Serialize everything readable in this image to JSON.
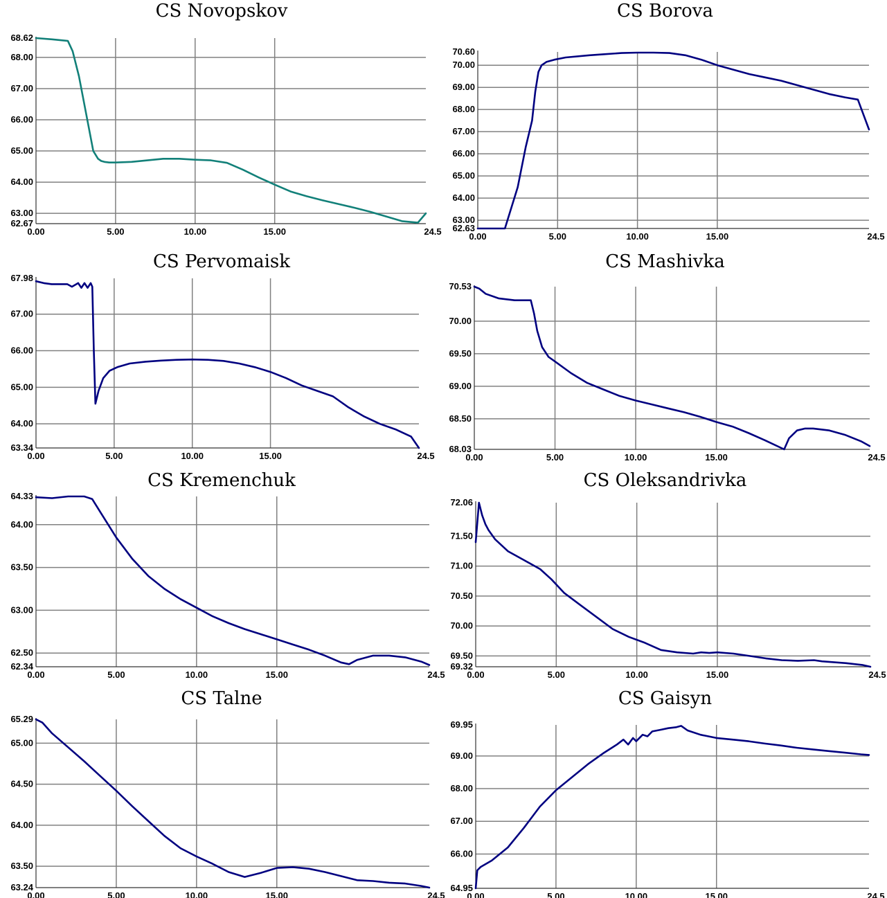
{
  "colors": {
    "line_blue": "#000080",
    "line_teal": "#128079",
    "grid": "#808080",
    "axis": "#333333"
  },
  "chart_data": [
    {
      "type": "line",
      "title": "CS Novopskov",
      "xlim": [
        0,
        24.5
      ],
      "ylim": [
        62.67,
        68.62
      ],
      "xticks": [
        "0.00",
        "5.00",
        "10.00",
        "15.00",
        "24.5"
      ],
      "xtick_values": [
        0,
        5,
        10,
        15,
        24.5
      ],
      "yticks": [
        "62.67",
        "63.00",
        "64.00",
        "65.00",
        "66.00",
        "67.00",
        "68.00",
        "68.62"
      ],
      "ytick_values": [
        62.67,
        63,
        64,
        65,
        66,
        67,
        68,
        68.62
      ],
      "line_color": "#128079",
      "x": [
        0,
        1,
        2,
        2.3,
        2.7,
        3.0,
        3.3,
        3.6,
        3.9,
        4.1,
        4.3,
        4.6,
        5,
        6,
        7,
        8,
        9,
        10,
        11,
        12,
        13,
        14,
        15,
        16,
        17,
        18,
        19,
        20,
        21,
        22,
        23,
        24,
        24.5
      ],
      "y": [
        68.62,
        68.58,
        68.53,
        68.2,
        67.4,
        66.6,
        65.8,
        65.0,
        64.75,
        64.68,
        64.65,
        64.63,
        64.63,
        64.65,
        64.7,
        64.75,
        64.75,
        64.72,
        64.7,
        64.62,
        64.4,
        64.15,
        63.92,
        63.7,
        63.55,
        63.42,
        63.3,
        63.18,
        63.05,
        62.9,
        62.75,
        62.7,
        63.0
      ]
    },
    {
      "type": "line",
      "title": "CS Borova",
      "xlim": [
        0,
        24.5
      ],
      "ylim": [
        62.63,
        70.6
      ],
      "xticks": [
        "0.00",
        "5.00",
        "10.00",
        "15.00",
        "24.5"
      ],
      "xtick_values": [
        0,
        5,
        10,
        15,
        24.5
      ],
      "yticks": [
        "62.63",
        "63.00",
        "64.00",
        "65.00",
        "66.00",
        "67.00",
        "68.00",
        "69.00",
        "70.00",
        "70.60"
      ],
      "ytick_values": [
        62.63,
        63,
        64,
        65,
        66,
        67,
        68,
        69,
        70,
        70.6
      ],
      "line_color": "#000080",
      "x": [
        0,
        1,
        1.7,
        2.5,
        3.0,
        3.4,
        3.6,
        3.8,
        4.0,
        4.3,
        4.8,
        5.5,
        7,
        8,
        9,
        10,
        11,
        12,
        13,
        14,
        15,
        16,
        17,
        18,
        19,
        20,
        21,
        22,
        23,
        23.8,
        24.5
      ],
      "y": [
        62.63,
        62.63,
        62.63,
        64.5,
        66.3,
        67.5,
        68.8,
        69.7,
        70.0,
        70.15,
        70.25,
        70.35,
        70.45,
        70.5,
        70.55,
        70.57,
        70.57,
        70.55,
        70.45,
        70.25,
        70.0,
        69.8,
        69.6,
        69.45,
        69.3,
        69.1,
        68.9,
        68.7,
        68.55,
        68.45,
        67.1
      ]
    },
    {
      "type": "line",
      "title": "CS Pervomaisk",
      "xlim": [
        0,
        24.5
      ],
      "ylim": [
        63.34,
        67.98
      ],
      "xticks": [
        "0.00",
        "5.00",
        "10.00",
        "15.00",
        "24.5"
      ],
      "xtick_values": [
        0,
        5,
        10,
        15,
        24.5
      ],
      "yticks": [
        "63.34",
        "64.00",
        "65.00",
        "66.00",
        "67.00",
        "67.98"
      ],
      "ytick_values": [
        63.34,
        64,
        65,
        66,
        67,
        67.98
      ],
      "line_color": "#000080",
      "x": [
        0,
        0.5,
        1,
        1.5,
        2,
        2.3,
        2.5,
        2.7,
        2.9,
        3.1,
        3.3,
        3.5,
        3.6,
        3.7,
        3.8,
        4.0,
        4.3,
        4.7,
        5.2,
        6,
        7,
        8,
        9,
        10,
        11,
        12,
        13,
        14,
        15,
        16,
        17,
        18,
        19,
        20,
        21,
        22,
        23,
        24,
        24.5
      ],
      "y": [
        67.9,
        67.85,
        67.82,
        67.82,
        67.82,
        67.75,
        67.8,
        67.85,
        67.72,
        67.85,
        67.72,
        67.85,
        67.75,
        66.0,
        64.55,
        64.9,
        65.25,
        65.45,
        65.55,
        65.65,
        65.7,
        65.73,
        65.75,
        65.76,
        65.75,
        65.72,
        65.65,
        65.55,
        65.42,
        65.25,
        65.05,
        64.9,
        64.75,
        64.45,
        64.2,
        64.0,
        63.85,
        63.65,
        63.34
      ]
    },
    {
      "type": "line",
      "title": "CS Mashivka",
      "xlim": [
        0,
        24.5
      ],
      "ylim": [
        68.03,
        70.53
      ],
      "xticks": [
        "0.00",
        "5.00",
        "10.00",
        "15.00",
        "24.5"
      ],
      "xtick_values": [
        0,
        5,
        10,
        15,
        24.5
      ],
      "yticks": [
        "68.03",
        "68.50",
        "69.00",
        "69.50",
        "70.00",
        "70.53"
      ],
      "ytick_values": [
        68.03,
        68.5,
        69,
        69.5,
        70,
        70.53
      ],
      "line_color": "#000080",
      "x": [
        0,
        0.3,
        0.7,
        1.5,
        2.5,
        3.5,
        3.7,
        3.9,
        4.2,
        4.6,
        5,
        6,
        7,
        8,
        9,
        10,
        11,
        12,
        13,
        14,
        15,
        16,
        17,
        18,
        19.2,
        19.5,
        20,
        20.5,
        21,
        22,
        23,
        24,
        24.5
      ],
      "y": [
        70.53,
        70.5,
        70.42,
        70.35,
        70.32,
        70.32,
        70.12,
        69.85,
        69.6,
        69.45,
        69.38,
        69.2,
        69.05,
        68.95,
        68.85,
        68.78,
        68.72,
        68.66,
        68.6,
        68.53,
        68.45,
        68.38,
        68.28,
        68.17,
        68.03,
        68.2,
        68.32,
        68.35,
        68.35,
        68.32,
        68.25,
        68.15,
        68.08
      ]
    },
    {
      "type": "line",
      "title": "CS Kremenchuk",
      "xlim": [
        0,
        24.5
      ],
      "ylim": [
        62.34,
        64.33
      ],
      "xticks": [
        "0.00",
        "5.00",
        "10.00",
        "15.00",
        "24.5"
      ],
      "xtick_values": [
        0,
        5,
        10,
        15,
        24.5
      ],
      "yticks": [
        "62.34",
        "62.50",
        "63.00",
        "63.50",
        "64.00",
        "64.33"
      ],
      "ytick_values": [
        62.34,
        62.5,
        63,
        63.5,
        64,
        64.33
      ],
      "line_color": "#000080",
      "x": [
        0,
        1,
        2,
        3,
        3.5,
        4,
        4.5,
        5,
        6,
        7,
        8,
        9,
        10,
        11,
        12,
        13,
        14,
        15,
        16,
        17,
        18,
        19,
        19.5,
        20,
        21,
        22,
        23,
        24,
        24.5
      ],
      "y": [
        64.32,
        64.31,
        64.33,
        64.33,
        64.3,
        64.15,
        64.0,
        63.85,
        63.6,
        63.4,
        63.25,
        63.13,
        63.03,
        62.93,
        62.85,
        62.78,
        62.72,
        62.66,
        62.6,
        62.54,
        62.47,
        62.39,
        62.37,
        62.42,
        62.47,
        62.47,
        62.45,
        62.4,
        62.36
      ]
    },
    {
      "type": "line",
      "title": "CS Oleksandrivka",
      "xlim": [
        0,
        24.5
      ],
      "ylim": [
        69.32,
        72.06
      ],
      "xticks": [
        "0.00",
        "5.00",
        "10.00",
        "15.00",
        "24.5"
      ],
      "xtick_values": [
        0,
        5,
        10,
        15,
        24.5
      ],
      "yticks": [
        "69.32",
        "69.50",
        "70.00",
        "70.50",
        "71.00",
        "71.50",
        "72.06"
      ],
      "ytick_values": [
        69.32,
        69.5,
        70,
        70.5,
        71,
        71.5,
        72.06
      ],
      "line_color": "#000080",
      "x": [
        0,
        0.2,
        0.4,
        0.6,
        0.8,
        1.2,
        2,
        3,
        4,
        4.7,
        5.5,
        6.5,
        7.5,
        8.5,
        9.5,
        10.5,
        11.5,
        12.5,
        13.5,
        14,
        14.5,
        15,
        16,
        17,
        18,
        19,
        20,
        21,
        21.5,
        22,
        23,
        24,
        24.5
      ],
      "y": [
        71.4,
        72.06,
        71.85,
        71.7,
        71.6,
        71.45,
        71.25,
        71.1,
        70.95,
        70.78,
        70.55,
        70.35,
        70.15,
        69.95,
        69.82,
        69.72,
        69.6,
        69.56,
        69.54,
        69.56,
        69.55,
        69.56,
        69.54,
        69.5,
        69.46,
        69.43,
        69.42,
        69.43,
        69.41,
        69.4,
        69.38,
        69.35,
        69.32
      ]
    },
    {
      "type": "line",
      "title": "CS Talne",
      "xlim": [
        0,
        24.5
      ],
      "ylim": [
        63.24,
        65.29
      ],
      "xticks": [
        "0.00",
        "5.00",
        "10.00",
        "15.00",
        "24.5"
      ],
      "xtick_values": [
        0,
        5,
        10,
        15,
        24.5
      ],
      "yticks": [
        "63.24",
        "63.50",
        "64.00",
        "64.50",
        "65.00",
        "65.29"
      ],
      "ytick_values": [
        63.24,
        63.5,
        64,
        64.5,
        65,
        65.29
      ],
      "line_color": "#000080",
      "x": [
        0,
        0.4,
        1,
        2,
        3,
        4,
        5,
        6,
        7,
        8,
        9,
        10,
        11,
        12,
        13,
        14,
        15,
        16,
        17,
        18,
        19,
        20,
        21,
        22,
        23,
        24,
        24.5
      ],
      "y": [
        65.29,
        65.25,
        65.12,
        64.95,
        64.78,
        64.6,
        64.42,
        64.23,
        64.05,
        63.87,
        63.72,
        63.62,
        63.53,
        63.43,
        63.37,
        63.42,
        63.48,
        63.49,
        63.47,
        63.43,
        63.38,
        63.33,
        63.32,
        63.3,
        63.29,
        63.26,
        63.24
      ]
    },
    {
      "type": "line",
      "title": "CS Gaisyn",
      "xlim": [
        0,
        24.5
      ],
      "ylim": [
        64.95,
        69.95
      ],
      "xticks": [
        "0.00",
        "5.00",
        "10.00",
        "15.00",
        "24.5"
      ],
      "xtick_values": [
        0,
        5,
        10,
        15,
        24.5
      ],
      "yticks": [
        "64.95",
        "66.00",
        "67.00",
        "68.00",
        "69.00",
        "69.95"
      ],
      "ytick_values": [
        64.95,
        66,
        67,
        68,
        69,
        69.95
      ],
      "line_color": "#000080",
      "x": [
        0,
        0.1,
        0.3,
        1,
        2,
        3,
        4,
        5,
        6,
        7,
        8,
        8.8,
        9.2,
        9.5,
        9.8,
        10.0,
        10.4,
        10.7,
        11,
        11.5,
        12,
        12.5,
        12.8,
        13.2,
        14,
        15,
        16,
        17,
        18,
        19,
        20,
        21,
        22,
        23,
        24,
        24.5
      ],
      "y": [
        64.95,
        65.5,
        65.6,
        65.8,
        66.2,
        66.8,
        67.45,
        67.95,
        68.35,
        68.75,
        69.1,
        69.35,
        69.5,
        69.35,
        69.55,
        69.45,
        69.65,
        69.6,
        69.75,
        69.8,
        69.85,
        69.88,
        69.92,
        69.78,
        69.65,
        69.55,
        69.5,
        69.45,
        69.38,
        69.32,
        69.25,
        69.2,
        69.15,
        69.1,
        69.05,
        69.03
      ]
    }
  ]
}
